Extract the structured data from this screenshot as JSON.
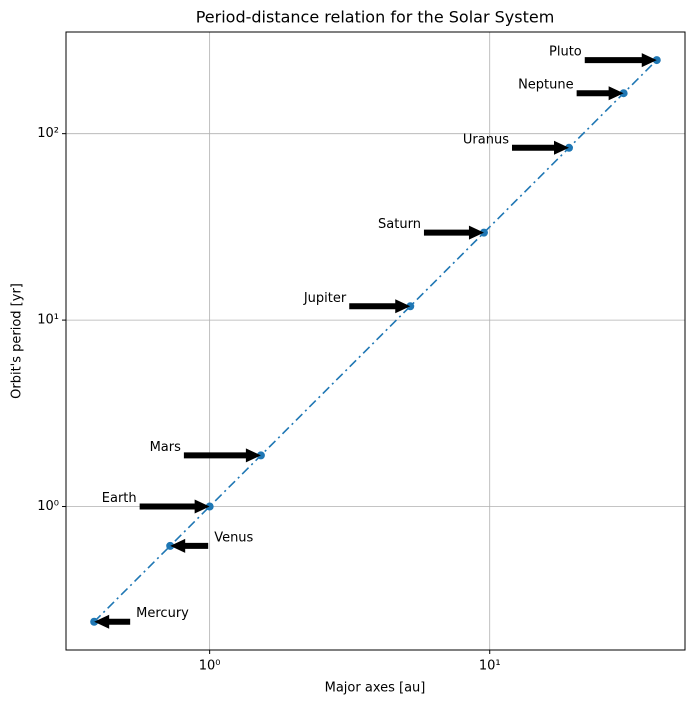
{
  "chart_data": {
    "type": "line",
    "title": "Period-distance relation for the Solar System",
    "x_label": "Major axes [au]",
    "y_label": "Orbit's period [yr]",
    "x": [
      0.387,
      0.723,
      1,
      1.524,
      5.203,
      9.537,
      19.19,
      30.07,
      39.48
    ],
    "values": [
      0.241,
      0.615,
      1,
      1.881,
      11.86,
      29.46,
      84.01,
      164.8,
      248.1
    ],
    "annotations": [
      "Mercury",
      "Venus",
      "Earth",
      "Mars",
      "Jupiter",
      "Saturn",
      "Uranus",
      "Neptune",
      "Pluto"
    ],
    "color": "#1f77b4",
    "line_style": "dashdot",
    "log_x": true,
    "log_y": true,
    "xlim": [
      0.307,
      49.8
    ],
    "ylim": [
      0.17,
      351
    ],
    "xticks": [
      {
        "value": 1,
        "label": "10⁰"
      },
      {
        "value": 10,
        "label": "10¹"
      }
    ],
    "yticks": [
      {
        "value": 1,
        "label": "10⁰"
      },
      {
        "value": 10,
        "label": "10¹"
      },
      {
        "value": 100,
        "label": "10²"
      }
    ],
    "grid": true
  }
}
